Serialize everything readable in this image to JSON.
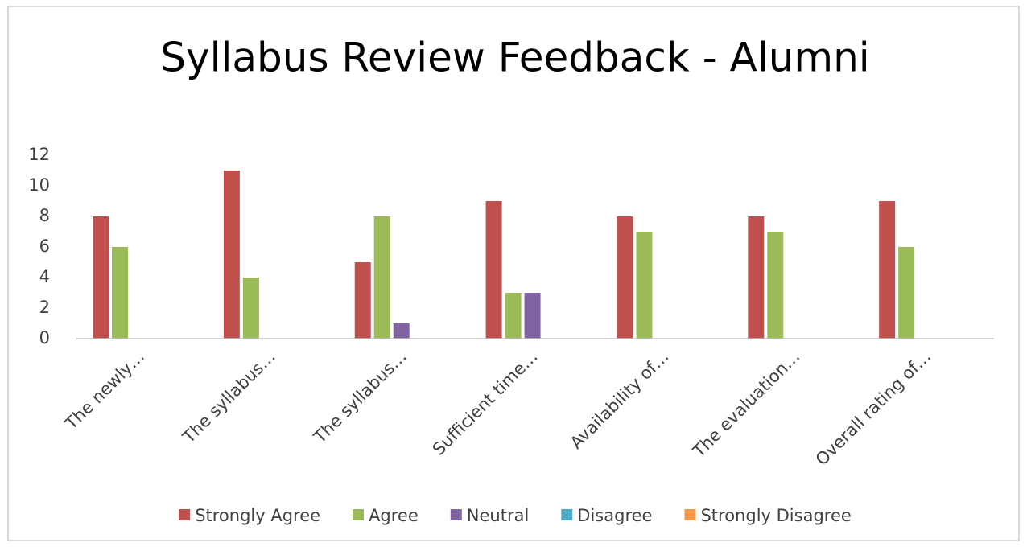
{
  "chart_data": {
    "type": "bar",
    "title": "Syllabus Review Feedback - Alumni",
    "categories": [
      "The newly…",
      "The syllabus…",
      "The syllabus…",
      "Sufficient time…",
      "Availability of…",
      "The evaluation…",
      "Overall rating of…"
    ],
    "series": [
      {
        "name": "Strongly Agree",
        "color": "#c0504d",
        "values": [
          8,
          11,
          5,
          9,
          8,
          8,
          9
        ]
      },
      {
        "name": "Agree",
        "color": "#9bbb59",
        "values": [
          6,
          4,
          8,
          3,
          7,
          7,
          6
        ]
      },
      {
        "name": "Neutral",
        "color": "#8064a2",
        "values": [
          0,
          0,
          1,
          3,
          0,
          0,
          0
        ]
      },
      {
        "name": "Disagree",
        "color": "#4bacc6",
        "values": [
          0,
          0,
          0,
          0,
          0,
          0,
          0
        ]
      },
      {
        "name": "Strongly Disagree",
        "color": "#f79646",
        "values": [
          0,
          0,
          0,
          0,
          0,
          0,
          0
        ]
      }
    ],
    "ylim": [
      0,
      12
    ],
    "yticks": [
      0,
      2,
      4,
      6,
      8,
      10,
      12
    ],
    "grid": false,
    "legend": "bottom"
  }
}
